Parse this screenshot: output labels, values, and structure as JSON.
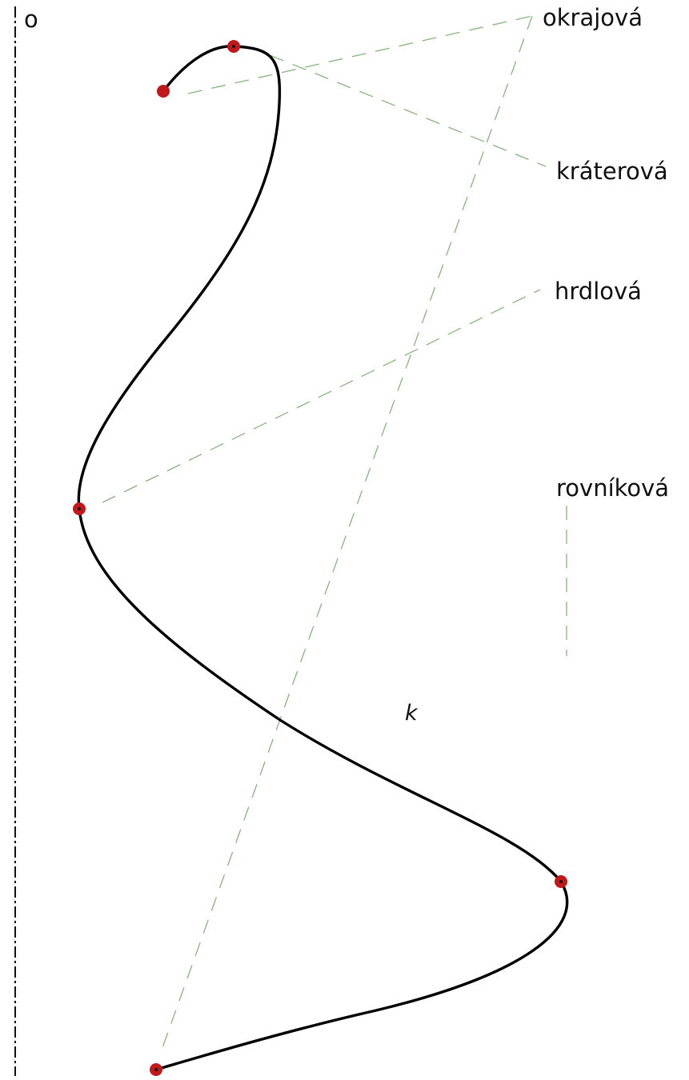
{
  "diagram": {
    "axis_label": "o",
    "curve_label": "k",
    "labels": {
      "okrajova": "okrajová",
      "kraterova": "kráterová",
      "hrdlova": "hrdlová",
      "rovnikova": "rovníková"
    },
    "colors": {
      "curve": "#000000",
      "points": "#c0181b",
      "leader_lines": "#86b57c",
      "axis": "#111111"
    }
  }
}
